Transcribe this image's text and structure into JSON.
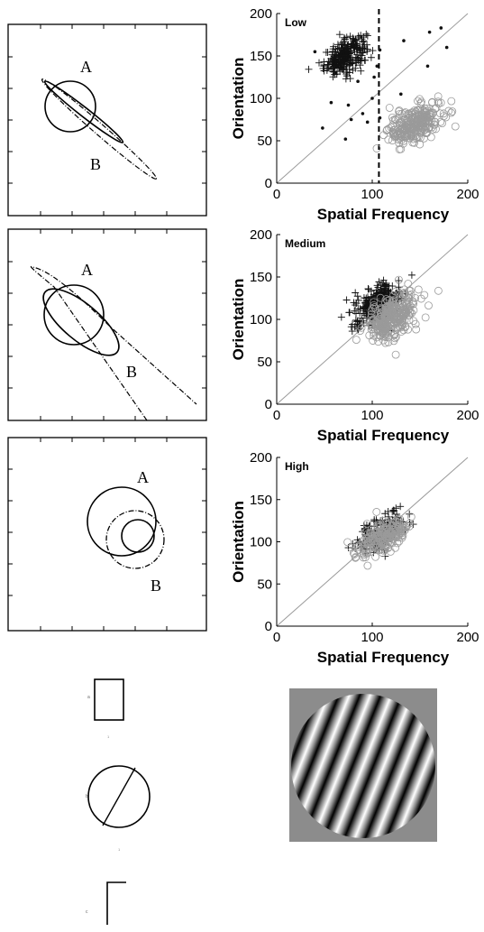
{
  "labels": {
    "ellipse_a": "A",
    "ellipse_b": "B",
    "small_a": "a",
    "small_b": "b",
    "small_c": "c",
    "small_tick": "1"
  },
  "colors": {
    "class_a": "#111111",
    "class_b": "#9a9a9a",
    "diagonal": "#9a9a9a",
    "stimulus_bg": "#8c8c8c"
  },
  "chart_data": [
    {
      "type": "scatter",
      "title": "Low",
      "xlabel": "Spatial Frequency",
      "ylabel": "Orientation",
      "xlim": [
        0,
        200
      ],
      "ylim": [
        0,
        200
      ],
      "xticks": [
        0,
        100,
        200
      ],
      "yticks": [
        0,
        50,
        100,
        150,
        200
      ],
      "threshold_x": 107,
      "reference_line": "y = x",
      "series": [
        {
          "marker": "plus",
          "color": "#111111",
          "cluster": {
            "cx": 72,
            "cy": 150,
            "sx": 11,
            "sy": 11,
            "rho": 0.5,
            "n": 260
          }
        },
        {
          "marker": "circle",
          "color": "#9a9a9a",
          "cluster": {
            "cx": 145,
            "cy": 70,
            "sx": 14,
            "sy": 12,
            "rho": 0.45,
            "n": 260
          }
        },
        {
          "marker": "dot",
          "color": "#111111",
          "points": [
            [
              82,
              168
            ],
            [
              108,
              157
            ],
            [
              133,
              168
            ],
            [
              160,
              178
            ],
            [
              172,
              183
            ],
            [
              178,
              160
            ],
            [
              62,
              130
            ],
            [
              85,
              120
            ],
            [
              102,
              125
            ],
            [
              100,
              100
            ],
            [
              57,
              95
            ],
            [
              75,
              92
            ],
            [
              78,
              75
            ],
            [
              90,
              82
            ],
            [
              95,
              72
            ],
            [
              48,
              65
            ],
            [
              72,
              52
            ],
            [
              108,
              77
            ],
            [
              158,
              138
            ],
            [
              40,
              155
            ],
            [
              130,
              105
            ],
            [
              105,
              138
            ]
          ]
        }
      ]
    },
    {
      "type": "scatter",
      "title": "Medium",
      "xlabel": "Spatial Frequency",
      "ylabel": "Orientation",
      "xlim": [
        0,
        200
      ],
      "ylim": [
        0,
        200
      ],
      "xticks": [
        0,
        100,
        200
      ],
      "yticks": [
        0,
        50,
        100,
        150,
        200
      ],
      "reference_line": "y = x",
      "series": [
        {
          "marker": "plus",
          "color": "#111111",
          "cluster": {
            "cx": 105,
            "cy": 118,
            "sx": 12,
            "sy": 12,
            "rho": 0.45,
            "n": 300
          }
        },
        {
          "marker": "circle",
          "color": "#9a9a9a",
          "cluster": {
            "cx": 120,
            "cy": 102,
            "sx": 13,
            "sy": 14,
            "rho": 0.45,
            "n": 300
          }
        }
      ]
    },
    {
      "type": "scatter",
      "title": "High",
      "xlabel": "Spatial Frequency",
      "ylabel": "Orientation",
      "xlim": [
        0,
        200
      ],
      "ylim": [
        0,
        200
      ],
      "xticks": [
        0,
        100,
        200
      ],
      "yticks": [
        0,
        50,
        100,
        150,
        200
      ],
      "reference_line": "y = x",
      "series": [
        {
          "marker": "plus",
          "color": "#111111",
          "cluster": {
            "cx": 110,
            "cy": 112,
            "sx": 13,
            "sy": 12,
            "rho": 0.6,
            "n": 170
          }
        },
        {
          "marker": "circle",
          "color": "#9a9a9a",
          "cluster": {
            "cx": 112,
            "cy": 106,
            "sx": 14,
            "sy": 12,
            "rho": 0.6,
            "n": 190
          }
        }
      ]
    }
  ]
}
